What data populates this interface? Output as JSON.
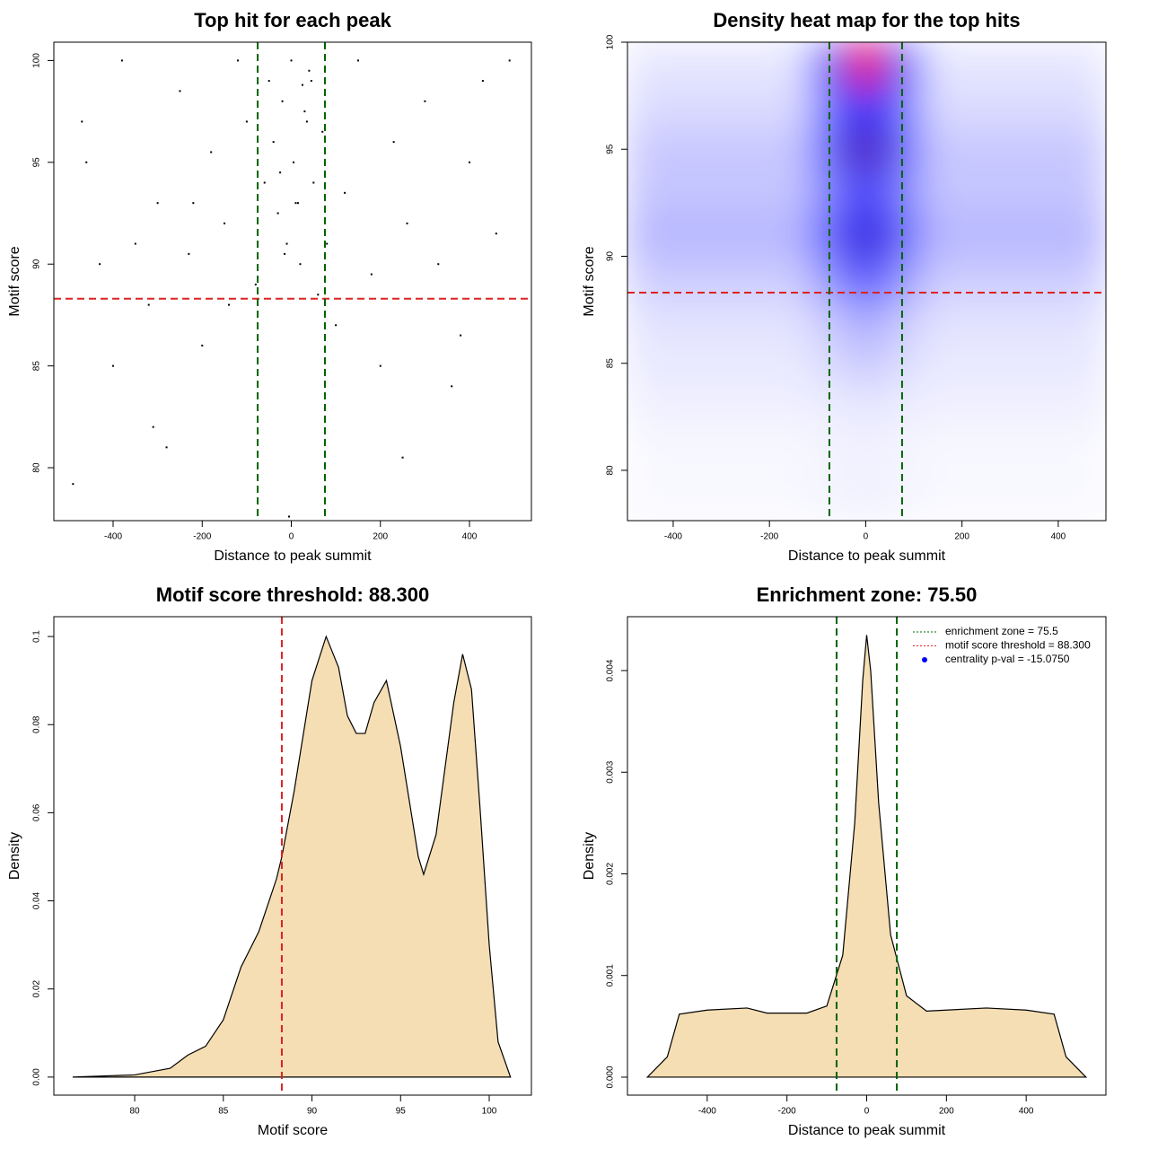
{
  "chart_data": [
    {
      "type": "scatter",
      "title": "Top hit for each peak",
      "xlabel": "Distance to peak summit",
      "ylabel": "Motif score",
      "x": [
        -490,
        -460,
        -430,
        -400,
        -380,
        -350,
        -320,
        -300,
        -280,
        -250,
        -230,
        -200,
        -180,
        -150,
        -120,
        -100,
        -80,
        -60,
        -50,
        -40,
        -30,
        -20,
        -10,
        0,
        5,
        10,
        20,
        30,
        40,
        50,
        60,
        70,
        80,
        100,
        120,
        150,
        180,
        200,
        230,
        260,
        300,
        330,
        360,
        400,
        430,
        460,
        490,
        -470,
        -310,
        -140,
        -25,
        15,
        35,
        -15,
        45,
        250,
        -220,
        380,
        -5,
        25
      ],
      "values": [
        79.2,
        95,
        90,
        85,
        100,
        91,
        88,
        93,
        81,
        98.5,
        90.5,
        86,
        95.5,
        92,
        100,
        97,
        89,
        94,
        99,
        96,
        92.5,
        98,
        91,
        100,
        95,
        93,
        90,
        97.5,
        99.5,
        94,
        88.5,
        96.5,
        91,
        87,
        93.5,
        100,
        89.5,
        85,
        96,
        92,
        98,
        90,
        84,
        95,
        99,
        91.5,
        100,
        97,
        82,
        88,
        94.5,
        93,
        97,
        90.5,
        99,
        80.5,
        93,
        86.5,
        77.6,
        98.8
      ],
      "color": "#000000",
      "xlim": [
        -533,
        539
      ],
      "ylim": [
        77.4,
        100.9
      ],
      "xticks": [
        -400,
        -200,
        0,
        200,
        400
      ],
      "yticks": [
        80,
        85,
        90,
        95,
        100
      ],
      "hline": {
        "value": 88.3,
        "color": "#dd2222"
      },
      "vlines": {
        "values": [
          -75.5,
          75.5
        ],
        "color": "#006400"
      }
    },
    {
      "type": "heatmap",
      "title": "Density heat map for the top hits",
      "xlabel": "Distance to peak summit",
      "ylabel": "Motif score",
      "x": [
        -450,
        -350,
        -250,
        -150,
        -75,
        0,
        75,
        150,
        250,
        350,
        450
      ],
      "y": [
        81,
        83,
        85,
        87,
        89,
        91,
        93,
        95,
        97,
        99
      ],
      "z": [
        [
          0.02,
          0.02,
          0.02,
          0.02,
          0.03,
          0.04,
          0.03,
          0.02,
          0.02,
          0.02,
          0.02
        ],
        [
          0.04,
          0.04,
          0.04,
          0.04,
          0.05,
          0.07,
          0.05,
          0.04,
          0.04,
          0.04,
          0.04
        ],
        [
          0.06,
          0.06,
          0.06,
          0.06,
          0.1,
          0.15,
          0.1,
          0.06,
          0.06,
          0.06,
          0.06
        ],
        [
          0.08,
          0.08,
          0.08,
          0.08,
          0.15,
          0.25,
          0.15,
          0.08,
          0.08,
          0.08,
          0.08
        ],
        [
          0.14,
          0.14,
          0.14,
          0.14,
          0.3,
          0.5,
          0.3,
          0.14,
          0.14,
          0.14,
          0.14
        ],
        [
          0.2,
          0.2,
          0.2,
          0.2,
          0.45,
          0.75,
          0.45,
          0.2,
          0.2,
          0.2,
          0.2
        ],
        [
          0.16,
          0.16,
          0.16,
          0.16,
          0.35,
          0.55,
          0.35,
          0.16,
          0.16,
          0.16,
          0.16
        ],
        [
          0.15,
          0.15,
          0.15,
          0.15,
          0.45,
          0.8,
          0.45,
          0.15,
          0.15,
          0.15,
          0.15
        ],
        [
          0.1,
          0.1,
          0.1,
          0.1,
          0.4,
          0.65,
          0.4,
          0.1,
          0.1,
          0.1,
          0.1
        ],
        [
          0.07,
          0.07,
          0.07,
          0.07,
          0.5,
          1.0,
          0.5,
          0.07,
          0.07,
          0.07,
          0.07
        ]
      ],
      "colors": [
        "#ffffff",
        "#0000ff",
        "#ff0000"
      ],
      "xlim": [
        -495,
        499
      ],
      "ylim": [
        77.65,
        100
      ],
      "xticks": [
        -400,
        -200,
        0,
        200,
        400
      ],
      "yticks": [
        80,
        85,
        90,
        95,
        100
      ],
      "hline": {
        "value": 88.3,
        "color": "#dd2222"
      },
      "vlines": {
        "values": [
          -75.5,
          75.5
        ],
        "color": "#006400"
      }
    },
    {
      "type": "area",
      "title": "Motif score threshold: 88.300",
      "xlabel": "Motif score",
      "ylabel": "Density",
      "x": [
        76.5,
        80,
        82,
        83,
        84,
        85,
        86,
        87,
        88,
        88.3,
        89,
        90,
        90.8,
        91.5,
        92,
        92.5,
        93,
        93.5,
        94.2,
        95,
        96,
        96.3,
        97,
        98,
        98.5,
        99,
        99.5,
        100,
        100.5,
        101.2
      ],
      "values": [
        0,
        0.0005,
        0.002,
        0.005,
        0.007,
        0.013,
        0.025,
        0.033,
        0.045,
        0.05,
        0.065,
        0.09,
        0.1,
        0.093,
        0.082,
        0.078,
        0.078,
        0.085,
        0.09,
        0.075,
        0.05,
        0.046,
        0.055,
        0.085,
        0.096,
        0.088,
        0.06,
        0.03,
        0.008,
        0
      ],
      "color": "#f5deb3",
      "xlim": [
        75.44,
        102.38
      ],
      "ylim": [
        -0.0041,
        0.1045
      ],
      "xticks": [
        80,
        85,
        90,
        95,
        100
      ],
      "yticks": [
        {
          "value": 0,
          "label": "0.00"
        },
        {
          "value": 0.02,
          "label": "0.02"
        },
        {
          "value": 0.04,
          "label": "0.04"
        },
        {
          "value": 0.06,
          "label": "0.06"
        },
        {
          "value": 0.08,
          "label": "0.08"
        },
        0.1
      ],
      "vlines": {
        "values": [
          88.3
        ],
        "color": "#dd2222"
      }
    },
    {
      "type": "area",
      "title": "Enrichment zone: 75.50",
      "xlabel": "Distance to peak summit",
      "ylabel": "Density",
      "x": [
        -550,
        -500,
        -470,
        -400,
        -300,
        -250,
        -150,
        -100,
        -60,
        -30,
        -10,
        0,
        10,
        30,
        60,
        100,
        150,
        200,
        300,
        400,
        470,
        500,
        550
      ],
      "values": [
        0,
        0.0002,
        0.00062,
        0.00066,
        0.00068,
        0.00063,
        0.00063,
        0.0007,
        0.0012,
        0.0025,
        0.0039,
        0.00435,
        0.004,
        0.0027,
        0.0014,
        0.0008,
        0.00065,
        0.00066,
        0.00068,
        0.00066,
        0.00062,
        0.0002,
        0
      ],
      "color": "#f5deb3",
      "xlim": [
        -600,
        600
      ],
      "ylim": [
        -0.000177,
        0.00453
      ],
      "xticks": [
        -400,
        -200,
        0,
        200,
        400
      ],
      "yticks": [
        {
          "value": 0,
          "label": "0.000"
        },
        {
          "value": 0.001,
          "label": "0.001"
        },
        {
          "value": 0.002,
          "label": "0.002"
        },
        {
          "value": 0.003,
          "label": "0.003"
        },
        {
          "value": 0.004,
          "label": "0.004"
        }
      ],
      "vlines": {
        "values": [
          -75.5,
          75.5
        ],
        "color": "#006400"
      },
      "legend_position": "top-right",
      "legend": [
        {
          "label": "enrichment zone = 75.5",
          "color": "#006400",
          "style": "dotted"
        },
        {
          "label": "motif score threshold = 88.300",
          "color": "#dd2222",
          "style": "dotted"
        },
        {
          "label": "centrality p-val = -15.0750",
          "color": "#0000ff",
          "style": "point"
        }
      ]
    }
  ]
}
